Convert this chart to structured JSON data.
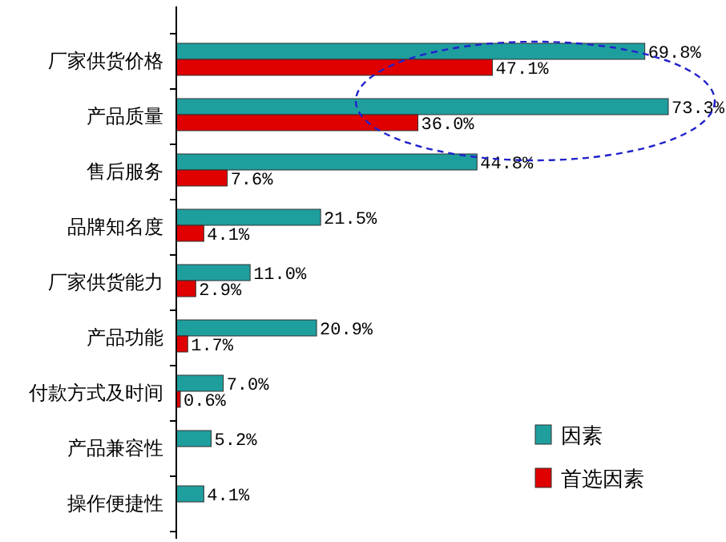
{
  "chart_data": {
    "type": "bar",
    "orientation": "horizontal",
    "relative": false,
    "categories": [
      "厂家供货价格",
      "产品质量",
      "售后服务",
      "品牌知名度",
      "厂家供货能力",
      "产品功能",
      "付款方式及时间",
      "产品兼容性",
      "操作便捷性"
    ],
    "series": [
      {
        "name": "因素",
        "color": "#1f9e9e",
        "values": [
          69.8,
          73.3,
          44.8,
          21.5,
          11.0,
          20.9,
          7.0,
          5.2,
          4.1
        ],
        "value_labels": [
          "69.8%",
          "73.3%",
          "44.8%",
          "21.5%",
          "11.0%",
          "20.9%",
          "7.0%",
          "5.2%",
          "4.1%"
        ]
      },
      {
        "name": "首选因素",
        "color": "#e00000",
        "values": [
          47.1,
          36.0,
          7.6,
          4.1,
          2.9,
          1.7,
          0.6,
          null,
          null
        ],
        "value_labels": [
          "47.1%",
          "36.0%",
          "7.6%",
          "4.1%",
          "2.9%",
          "1.7%",
          "0.6%",
          null,
          null
        ]
      }
    ],
    "legend": "bottom right"
  }
}
